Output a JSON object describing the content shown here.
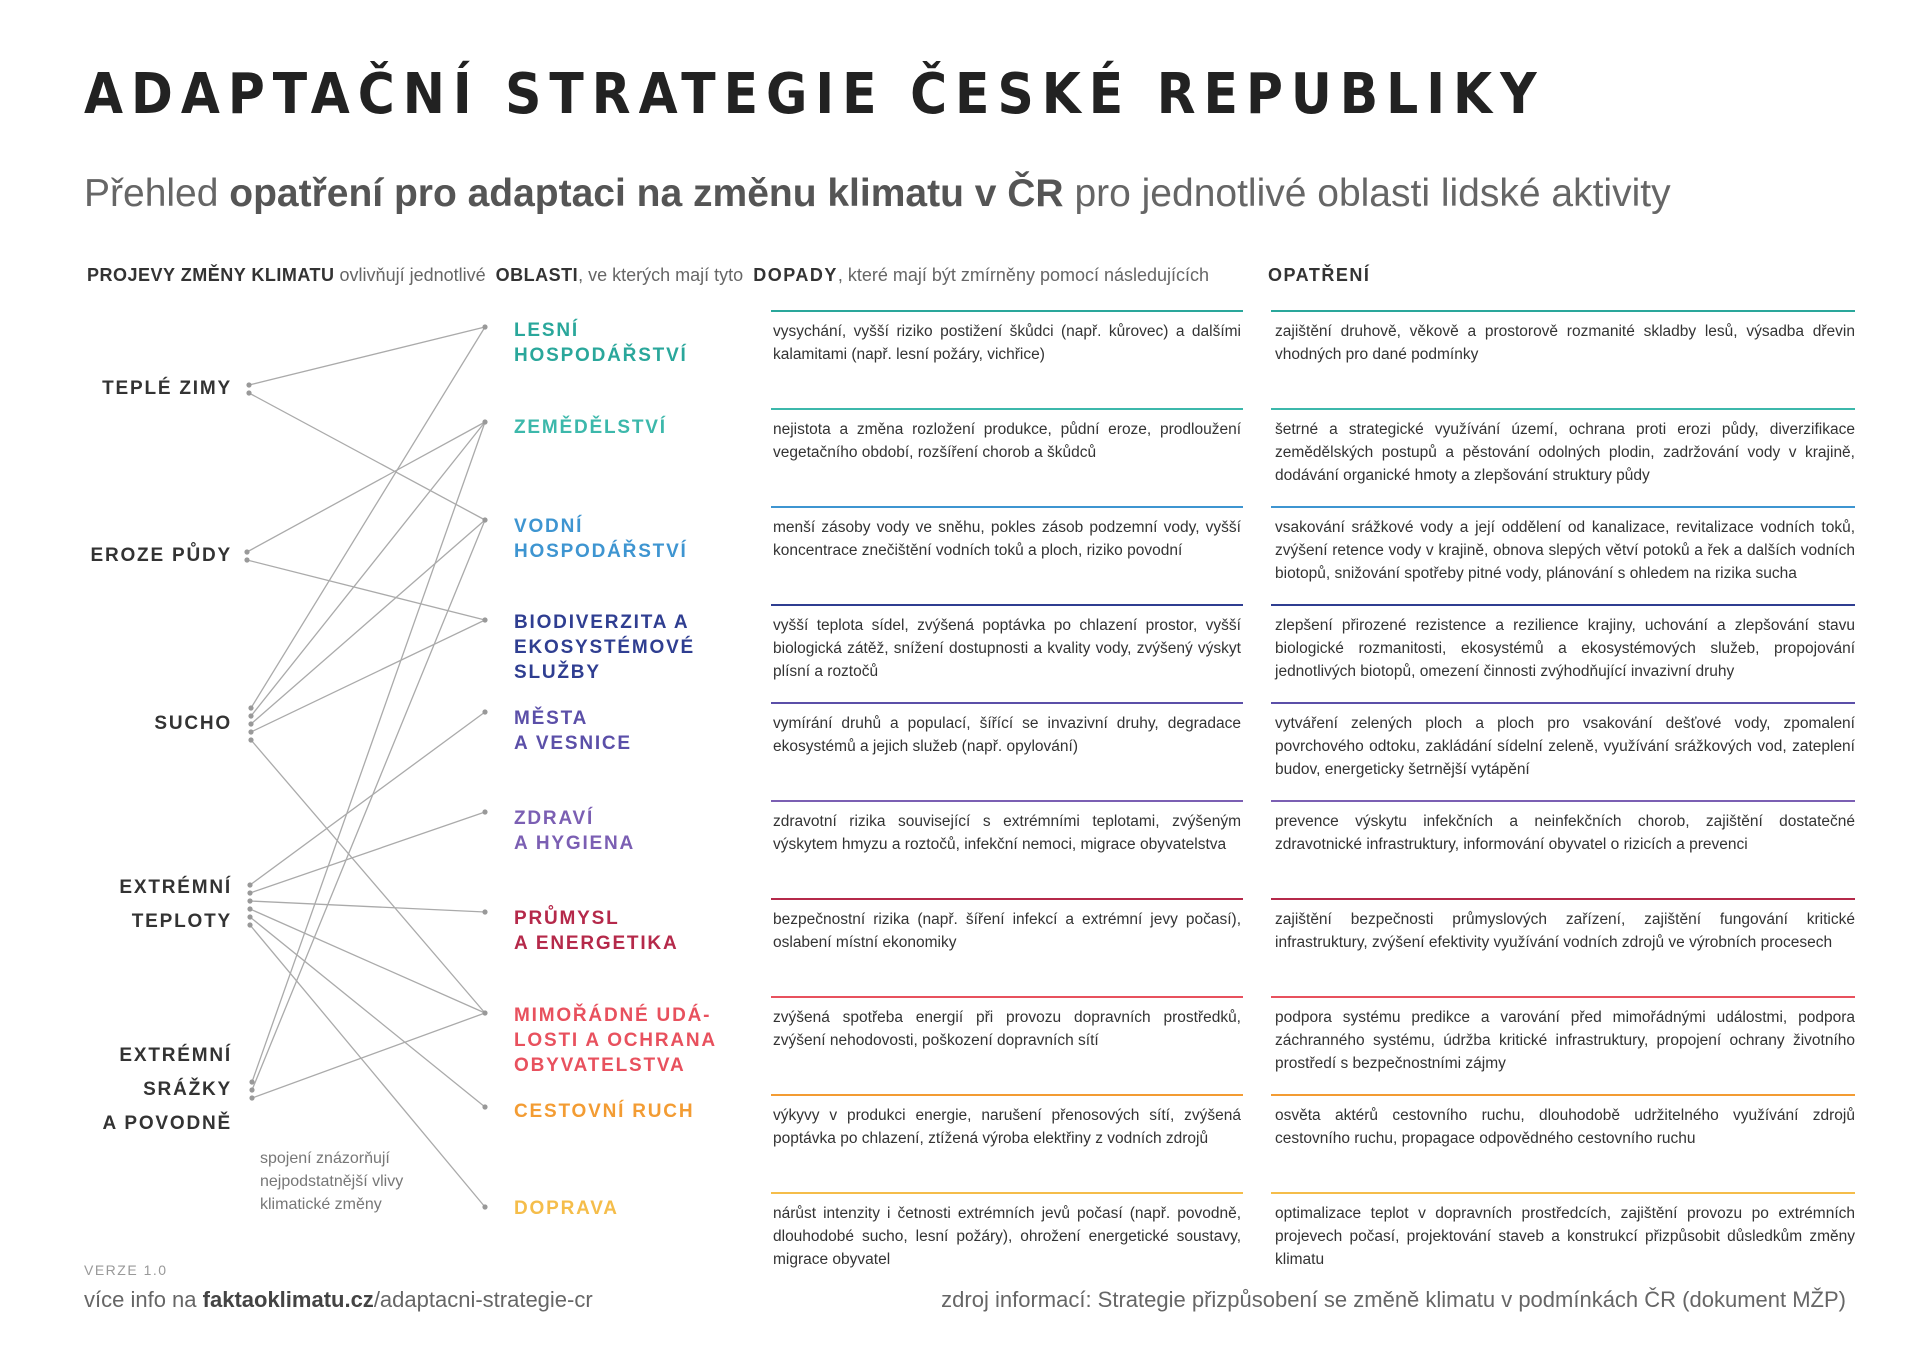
{
  "title": "ADAPTAČNÍ STRATEGIE ČESKÉ REPUBLIKY",
  "subtitle": {
    "part1": "Přehled ",
    "bold": "opatření pro adaptaci na změnu klimatu v ČR",
    "part2": " pro jednotlivé oblasti lidské aktivity"
  },
  "header": {
    "col1_bold": "PROJEVY ZMĚNY KLIMATU",
    "col1_rest": " ovlivňují jednotlivé  ",
    "col2_bold": "OBLASTI",
    "col2_rest": ", ve kterých mají tyto  ",
    "col3_bold": "DOPADY",
    "col3_rest": ", které mají být zmírněny pomocí následujících",
    "col4_bold": "OPATŘENÍ"
  },
  "phenomena": [
    "TEPLÉ ZIMY",
    "EROZE PŮDY",
    "SUCHO",
    "EXTRÉMNÍ\nTEPLOTY",
    "EXTRÉMNÍ\nSRÁŽKY\nA POVODNĚ"
  ],
  "areas": [
    {
      "name": "LESNÍ\nHOSPODÁŘSTVÍ",
      "color": "#2aa79b",
      "impact": "vysychání, vyšší riziko postižení škůdci (např. kůrovec) a dalšími kalamitami (např. lesní požáry, vichřice)",
      "measure": "zajištění druhově, věkově a prostorově rozmanité skladby lesů, výsadba dřevin vhodných pro dané podmínky"
    },
    {
      "name": "ZEMĚDĚLSTVÍ",
      "color": "#3cb8ab",
      "impact": "nejistota a změna rozložení produkce, půdní eroze, prodloužení vegetačního období, rozšíření chorob a škůdců",
      "measure": "šetrné a strategické využívání území, ochrana proti erozi půdy, diverzifikace zemědělských postupů a pěstování odolných plodin, zadržování vody v krajině, dodávání organické hmoty a zlepšování struktury půdy"
    },
    {
      "name": "VODNÍ\nHOSPODÁŘSTVÍ",
      "color": "#3e95d1",
      "impact": "menší zásoby vody ve sněhu, pokles zásob podzemní vody, vyšší koncentrace znečištění vodních toků a ploch, riziko povodní",
      "measure": "vsakování srážkové vody a její oddělení od kanalizace, revitalizace vodních toků, zvýšení retence vody v krajině, obnova slepých větví potoků a řek a dalších vodních biotopů, snižování spotřeby pitné vody, plánování s ohledem na rizika sucha"
    },
    {
      "name": "BIODIVERZITA A\nEKOSYSTÉMOVÉ\nSLUŽBY",
      "color": "#2f3e91",
      "impact": "vyšší teplota sídel, zvýšená poptávka po chlazení prostor, vyšší biologická zátěž, snížení dostupnosti a kvality vody, zvýšený výskyt plísní a roztočů",
      "measure": "zlepšení přirozené rezistence a rezilience krajiny, uchování a zlepšování stavu biologické rozmanitosti, ekosystémů a ekosystémových služeb, propojování jednotlivých biotopů, omezení činnosti zvýhodňující invazivní druhy"
    },
    {
      "name": "MĚSTA\nA VESNICE",
      "color": "#5b4fa8",
      "impact": "vymírání druhů a populací, šířící se invazivní druhy, degradace ekosystémů a jejich služeb (např. opylování)",
      "measure": "vytváření zelených ploch a ploch pro vsakování dešťové vody, zpomalení povrchového odtoku, zakládání sídelní zeleně, využívání srážkových vod, zateplení budov, energeticky šetrnější vytápění"
    },
    {
      "name": "ZDRAVÍ\nA HYGIENA",
      "color": "#7b5fb3",
      "impact": "zdravotní rizika související s extrémními teplotami, zvýšeným výskytem hmyzu a roztočů, infekční nemoci, migrace obyvatelstva",
      "measure": "prevence výskytu infekčních a neinfekčních chorob, zajištění dostatečné zdravotnické infrastruktury, informování obyvatel o rizicích a prevenci"
    },
    {
      "name": "PRŮMYSL\nA ENERGETIKA",
      "color": "#b5294a",
      "impact": "bezpečnostní rizika (např. šíření infekcí a extrémní jevy počasí), oslabení místní ekonomiky",
      "measure": "zajištění bezpečnosti průmyslových zařízení, zajištění fungování kritické infrastruktury, zvýšení efektivity využívání vodních zdrojů ve výrobních procesech"
    },
    {
      "name": "MIMOŘÁDNÉ UDÁ-\nLOSTI A OCHRANA\nOBYVATELSTVA",
      "color": "#e8515e",
      "impact": "zvýšená spotřeba energií při provozu dopravních prostředků, zvýšení nehodovosti, poškození dopravních sítí",
      "measure": "podpora systému predikce a varování před mimořádnými událostmi, podpora záchranného systému, údržba kritické infrastruktury, propojení ochrany životního prostředí s bezpečnostními zájmy"
    },
    {
      "name": "CESTOVNÍ RUCH",
      "color": "#f39c33",
      "impact": "výkyvy v produkci energie, narušení přenosových sítí, zvýšená poptávka po chlazení, ztížená výroba elektřiny z vodních zdrojů",
      "measure": "osvěta aktérů cestovního ruchu, dlouhodobě udržitelného využívání zdrojů cestovního ruchu, propagace odpovědného cestovního ruchu"
    },
    {
      "name": "DOPRAVA",
      "color": "#f5bd4a",
      "impact": "nárůst intenzity i četnosti extrémních jevů počasí (např. povodně, dlouhodobé sucho, lesní požáry), ohrožení energetické soustavy, migrace obyvatel",
      "measure": "optimalizace teplot v dopravních prostředcích, zajištění provozu po extrémních projevech počasí, projektování staveb a konstrukcí přizpůsobit důsledkům změny klimatu"
    }
  ],
  "links": [
    [
      0,
      0
    ],
    [
      0,
      2
    ],
    [
      1,
      1
    ],
    [
      1,
      3
    ],
    [
      2,
      0
    ],
    [
      2,
      1
    ],
    [
      2,
      2
    ],
    [
      2,
      3
    ],
    [
      2,
      7
    ],
    [
      3,
      4
    ],
    [
      3,
      5
    ],
    [
      3,
      6
    ],
    [
      3,
      7
    ],
    [
      3,
      8
    ],
    [
      3,
      9
    ],
    [
      4,
      1
    ],
    [
      4,
      2
    ],
    [
      4,
      7
    ]
  ],
  "note": "spojení znázorňují nejpodstatnější vlivy klimatické změny",
  "version": "VERZE 1.0",
  "footer": {
    "more_prefix": "více info na ",
    "more_bold": "faktaoklimatu.cz",
    "more_rest": "/adaptacni-strategie-cr",
    "source": "zdroj informací: Strategie přizpůsobení se změně klimatu v podmínkách ČR (dokument MŽP)"
  },
  "colors": {
    "link_line": "#aaaaaa",
    "dot": "#999999"
  }
}
